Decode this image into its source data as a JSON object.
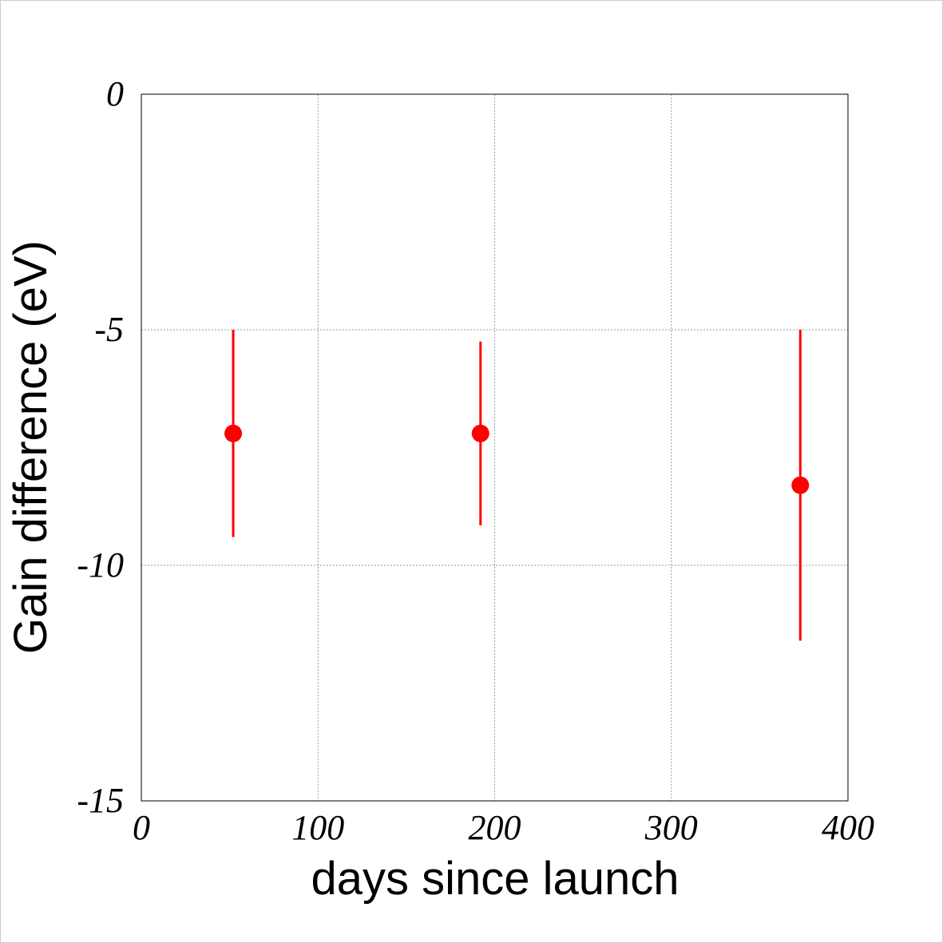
{
  "chart_data": {
    "type": "scatter",
    "xlabel": "days since launch",
    "ylabel": "Gain difference (eV)",
    "series": [
      {
        "color": "#ff0000",
        "x": [
          52,
          192,
          373
        ],
        "values": [
          -7.2,
          -7.2,
          -8.3
        ],
        "errors": [
          2.2,
          1.95,
          3.3
        ]
      }
    ],
    "xlim": [
      0,
      400
    ],
    "xticks": [
      0,
      100,
      200,
      300,
      400
    ],
    "ylim": [
      -15,
      0
    ],
    "yticks": [
      -15,
      -10,
      -5,
      0
    ],
    "grid": true
  }
}
